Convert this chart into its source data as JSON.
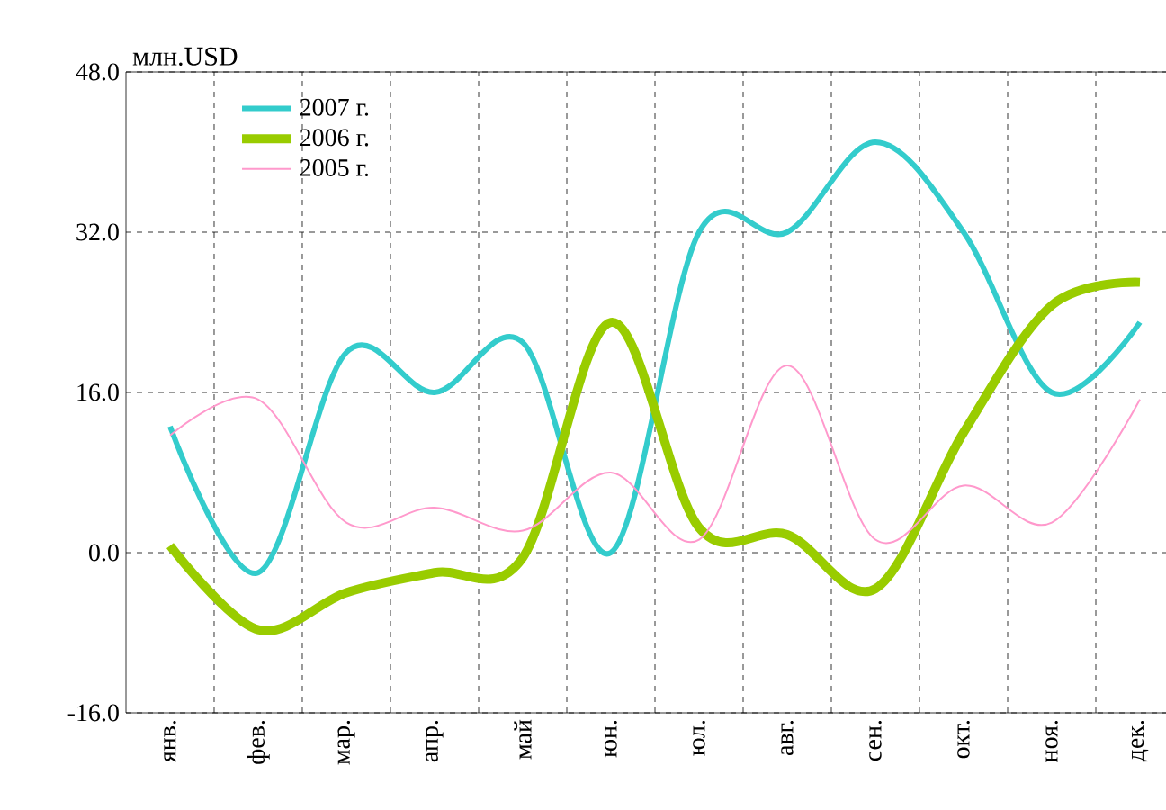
{
  "chart_data": {
    "type": "line",
    "ylabel": "млн.USD",
    "categories": [
      "янв.",
      "фев.",
      "мар.",
      "апр.",
      "май",
      "юн.",
      "юл.",
      "авг.",
      "сен.",
      "окт.",
      "ноя.",
      "дек."
    ],
    "series": [
      {
        "name": "2007 г.",
        "color": "#33cccc",
        "values": [
          12.6,
          -2,
          20,
          16,
          21,
          0,
          32,
          32,
          41,
          32,
          16,
          23
        ]
      },
      {
        "name": "2006 г.",
        "color": "#99cc00",
        "values": [
          0.7,
          -7.7,
          -4,
          -2,
          -0.5,
          23,
          2.5,
          1.8,
          -3.6,
          12,
          24.7,
          27
        ]
      },
      {
        "name": "2005 г.",
        "color": "#ff99cc",
        "values": [
          11.7,
          15.3,
          3,
          4.5,
          2.2,
          8,
          1.3,
          18.7,
          1.3,
          6.7,
          3,
          15.3
        ]
      }
    ],
    "ylim": [
      -16,
      48
    ],
    "yticks": [
      {
        "value": -16,
        "label": "-16.0"
      },
      {
        "value": 0,
        "label": "0.0"
      },
      {
        "value": 16,
        "label": "16.0"
      },
      {
        "value": 32,
        "label": "32.0"
      },
      {
        "value": 48,
        "label": "48.0"
      }
    ],
    "grid": true,
    "legend": "top left",
    "marker": "none",
    "line_style": "solid"
  }
}
